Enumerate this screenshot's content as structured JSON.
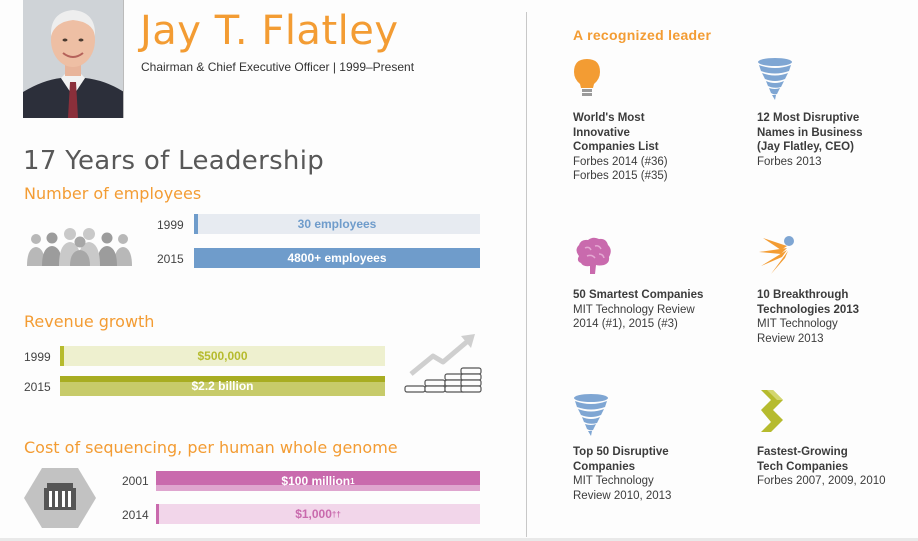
{
  "header": {
    "name": "Jay T. Flatley",
    "subtitle": "Chairman & Chief Executive Officer  |  1999–Present"
  },
  "leadership_title": "17 Years of Leadership",
  "employees": {
    "title": "Number of employees",
    "rows": [
      {
        "year": "1999",
        "label": "30 employees",
        "value": 30
      },
      {
        "year": "2015",
        "label": "4800+ employees",
        "value": 4800
      }
    ]
  },
  "revenue": {
    "title": "Revenue growth",
    "rows": [
      {
        "year": "1999",
        "label": "$500,000",
        "value": 500000
      },
      {
        "year": "2015",
        "label": "$2.2 billion",
        "value": 2200000000
      }
    ]
  },
  "sequencing": {
    "title": "Cost of sequencing, per human whole genome",
    "rows": [
      {
        "year": "2001",
        "label": "$100 million",
        "sup": "1"
      },
      {
        "year": "2014",
        "label": "$1,000",
        "sup": "††"
      }
    ]
  },
  "recognition": {
    "title": "A recognized leader",
    "awards": [
      {
        "icon": "lightbulb-icon",
        "title": "World's Most\nInnovative\nCompanies List",
        "detail": "Forbes 2014 (#36)\nForbes 2015 (#35)"
      },
      {
        "icon": "tornado-icon",
        "title": "12 Most Disruptive\nNames in Business\n(Jay Flatley, CEO)",
        "detail": "Forbes 2013"
      },
      {
        "icon": "brain-icon",
        "title": "50 Smartest Companies",
        "detail": "MIT Technology Review\n2014 (#1), 2015 (#3)"
      },
      {
        "icon": "burst-icon",
        "title": "10 Breakthrough\nTechnologies 2013",
        "detail": "MIT Technology\nReview 2013"
      },
      {
        "icon": "tornado-icon",
        "title": "Top 50 Disruptive\nCompanies",
        "detail": "MIT Technology\nReview 2010, 2013"
      },
      {
        "icon": "dna-icon",
        "title": "Fastest-Growing\nTech Companies",
        "detail": "Forbes 2007, 2009, 2010"
      }
    ]
  },
  "colors": {
    "orange": "#f39c33",
    "blue": "#6f9ccb",
    "blue_light": "#e7ebf1",
    "green": "#b6bb2e",
    "green_light": "#eef0cf",
    "pink": "#c96aad",
    "pink_light": "#f2d6ea"
  }
}
